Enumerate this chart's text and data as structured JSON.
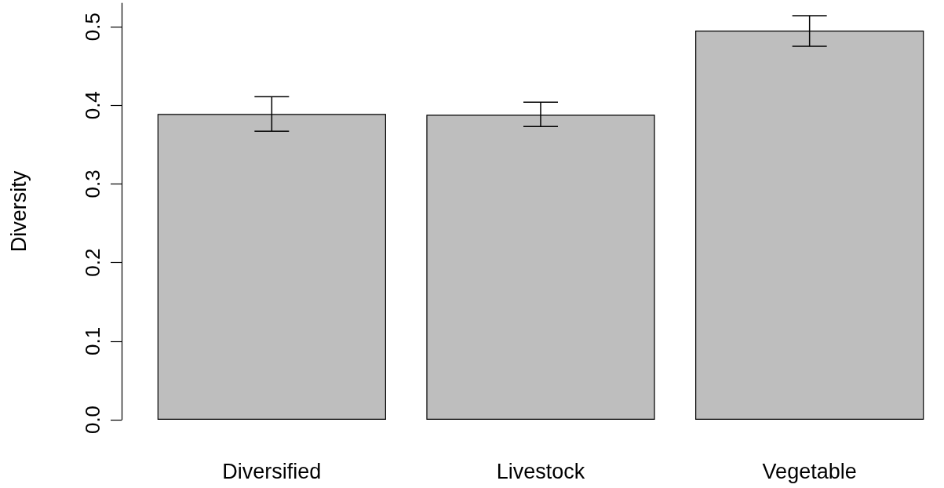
{
  "chart_data": {
    "type": "bar",
    "ylabel": "Diversity",
    "categories": [
      "Diversified",
      "Livestock",
      "Vegetable"
    ],
    "values": [
      0.389,
      0.388,
      0.495
    ],
    "errors": [
      [
        0.367,
        0.411
      ],
      [
        0.373,
        0.404
      ],
      [
        0.475,
        0.514
      ]
    ],
    "color": "#bebebe",
    "ylim": [
      0,
      0.53
    ],
    "yticks": [
      {
        "value": 0,
        "label": "0.0"
      },
      {
        "value": 0.1,
        "label": "0.1"
      },
      {
        "value": 0.2,
        "label": "0.2"
      },
      {
        "value": 0.3,
        "label": "0.3"
      },
      {
        "value": 0.4,
        "label": "0.4"
      },
      {
        "value": 0.5,
        "label": "0.5"
      }
    ],
    "grid": false
  }
}
